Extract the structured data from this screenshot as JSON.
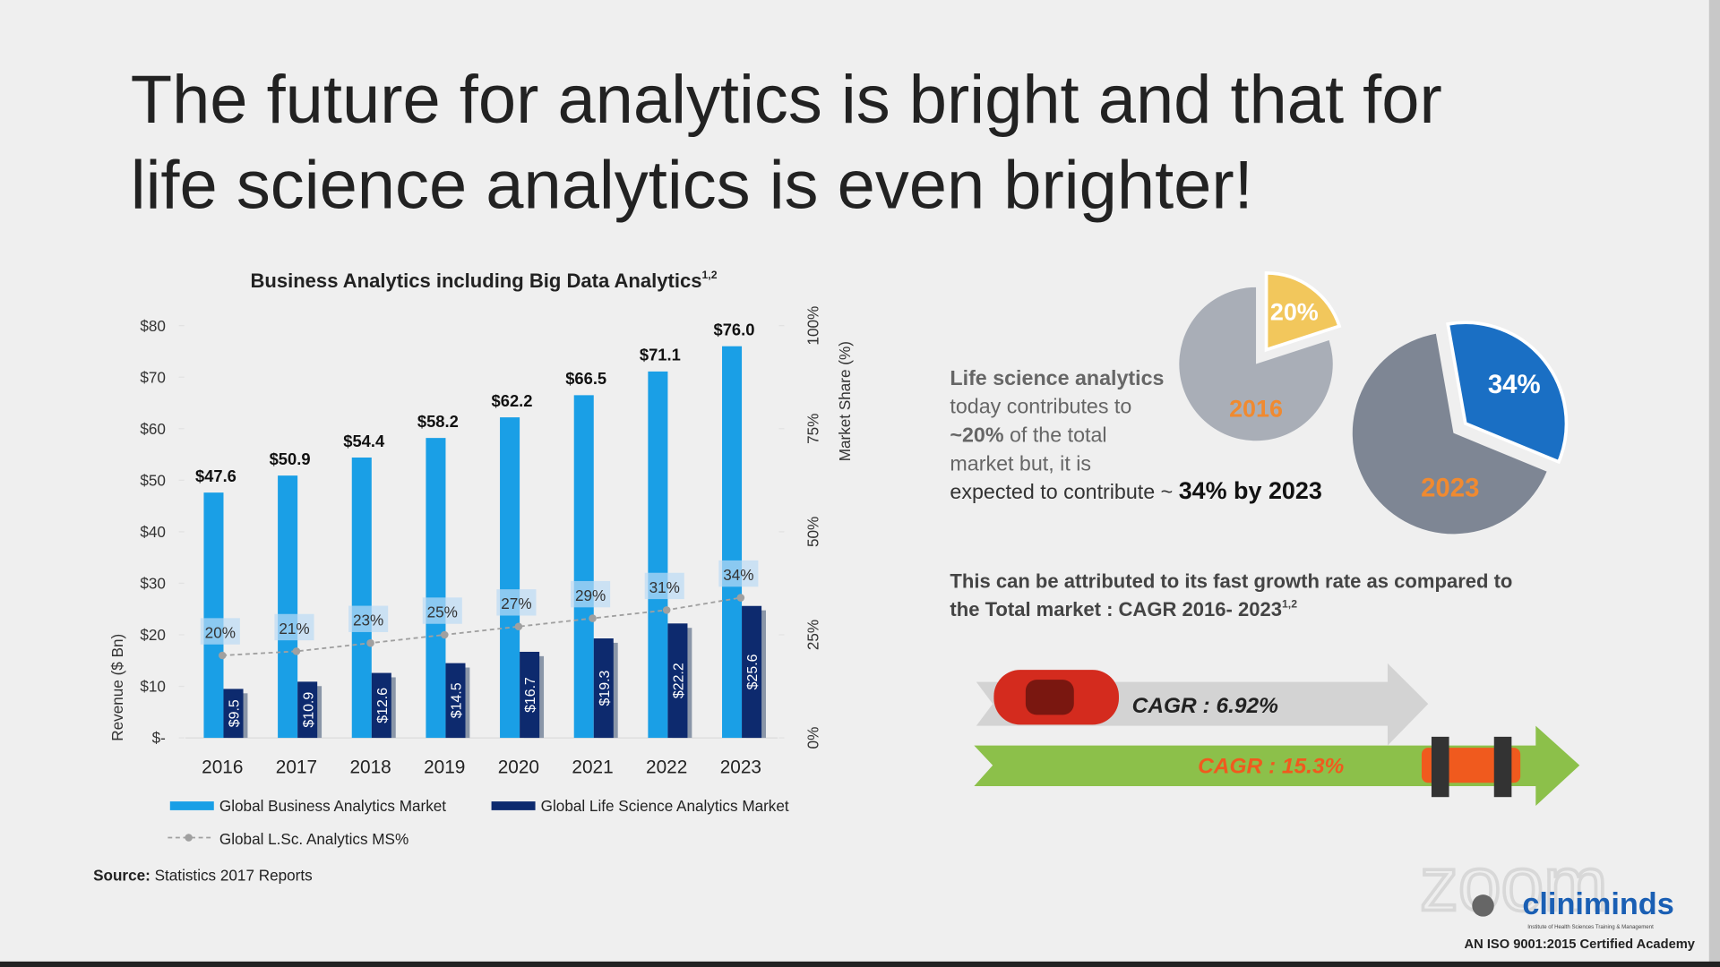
{
  "slide": {
    "title_lines": [
      "The future for analytics is bright and that for",
      "life science analytics is even brighter!"
    ],
    "pie_note": [
      [
        {
          "text": "Life science analytics",
          "bold": true
        }
      ],
      [
        {
          "text": "today contributes to",
          "bold": false
        }
      ],
      [
        {
          "text": "~20%",
          "bold": true
        },
        {
          "text": " of the total",
          "bold": false
        }
      ],
      [
        {
          "text": "market but, it is",
          "bold": false
        }
      ],
      [
        {
          "text": "expected to contribute ~ ",
          "bold": false
        },
        {
          "text": "34% by 2023",
          "bold": true,
          "dark": true
        }
      ]
    ],
    "growth_lines": [
      "This can be attributed to its fast growth rate as compared to",
      "the Total market  : CAGR 2016- 2023"
    ],
    "growth_note": "1,2",
    "cagr_total": "CAGR : 6.92%",
    "cagr_life": "CAGR : 15.3%",
    "source_label": "Source:",
    "source": " Statistics 2017 Reports",
    "logo": "cliniminds",
    "logo_sub": "Institute of Health Sciences Training & Management",
    "logo_tag": "AN ISO 9001:2015 Certified Academy",
    "watermark": "zoom"
  },
  "chart_data": [
    {
      "type": "bar",
      "title": "Business Analytics including Big Data Analytics",
      "title_note": "1,2",
      "ylabel": "Revenue ($ Bn)",
      "y2label": "Market Share (%)",
      "categories": [
        "2016",
        "2017",
        "2018",
        "2019",
        "2020",
        "2021",
        "2022",
        "2023"
      ],
      "series": [
        {
          "name": "Global Business Analytics Market",
          "color": "#1a9fe6",
          "values": [
            47.6,
            50.9,
            54.4,
            58.2,
            62.2,
            66.5,
            71.1,
            76.0
          ],
          "value_labels": [
            "$47.6",
            "$50.9",
            "$54.4",
            "$58.2",
            "$62.2",
            "$66.5",
            "$71.1",
            "$76.0"
          ]
        },
        {
          "name": "Global Life Science Analytics Market",
          "color": "#0d2a6e",
          "values": [
            9.5,
            10.9,
            12.6,
            14.5,
            16.7,
            19.3,
            22.2,
            25.6
          ],
          "value_labels": [
            "$9.5",
            "$10.9",
            "$12.6",
            "$14.5",
            "$16.7",
            "$19.3",
            "$22.2",
            "$25.6"
          ]
        },
        {
          "name": "Global L.Sc. Analytics MS%",
          "color": "#a0a0a0",
          "axis": "y2",
          "values": [
            20,
            21,
            23,
            25,
            27,
            29,
            31,
            34
          ],
          "value_labels": [
            "20%",
            "21%",
            "23%",
            "25%",
            "27%",
            "29%",
            "31%",
            "34%"
          ]
        }
      ],
      "ylim": [
        0,
        80
      ],
      "yticks": [
        {
          "value": 0,
          "label": "$-"
        },
        {
          "value": 10,
          "label": "$10"
        },
        {
          "value": 20,
          "label": "$20"
        },
        {
          "value": 30,
          "label": "$30"
        },
        {
          "value": 40,
          "label": "$40"
        },
        {
          "value": 50,
          "label": "$50"
        },
        {
          "value": 60,
          "label": "$60"
        },
        {
          "value": 70,
          "label": "$70"
        },
        {
          "value": 80,
          "label": "$80"
        }
      ],
      "y2lim": [
        0,
        100
      ],
      "y2ticks": [
        {
          "value": 0,
          "label": "0%"
        },
        {
          "value": 25,
          "label": "25%"
        },
        {
          "value": 50,
          "label": "50%"
        },
        {
          "value": 75,
          "label": "75%"
        },
        {
          "value": 100,
          "label": "100%"
        }
      ]
    },
    {
      "type": "pie",
      "label": "2016",
      "values": [
        20
      ],
      "value_labels": [
        "20%"
      ],
      "colors": [
        "#f2c75c"
      ],
      "rest_color": "#a9aeb7"
    },
    {
      "type": "pie",
      "label": "2023",
      "values": [
        34
      ],
      "value_labels": [
        "34%"
      ],
      "colors": [
        "#1a6fc4"
      ],
      "rest_color": "#7e8694"
    }
  ]
}
